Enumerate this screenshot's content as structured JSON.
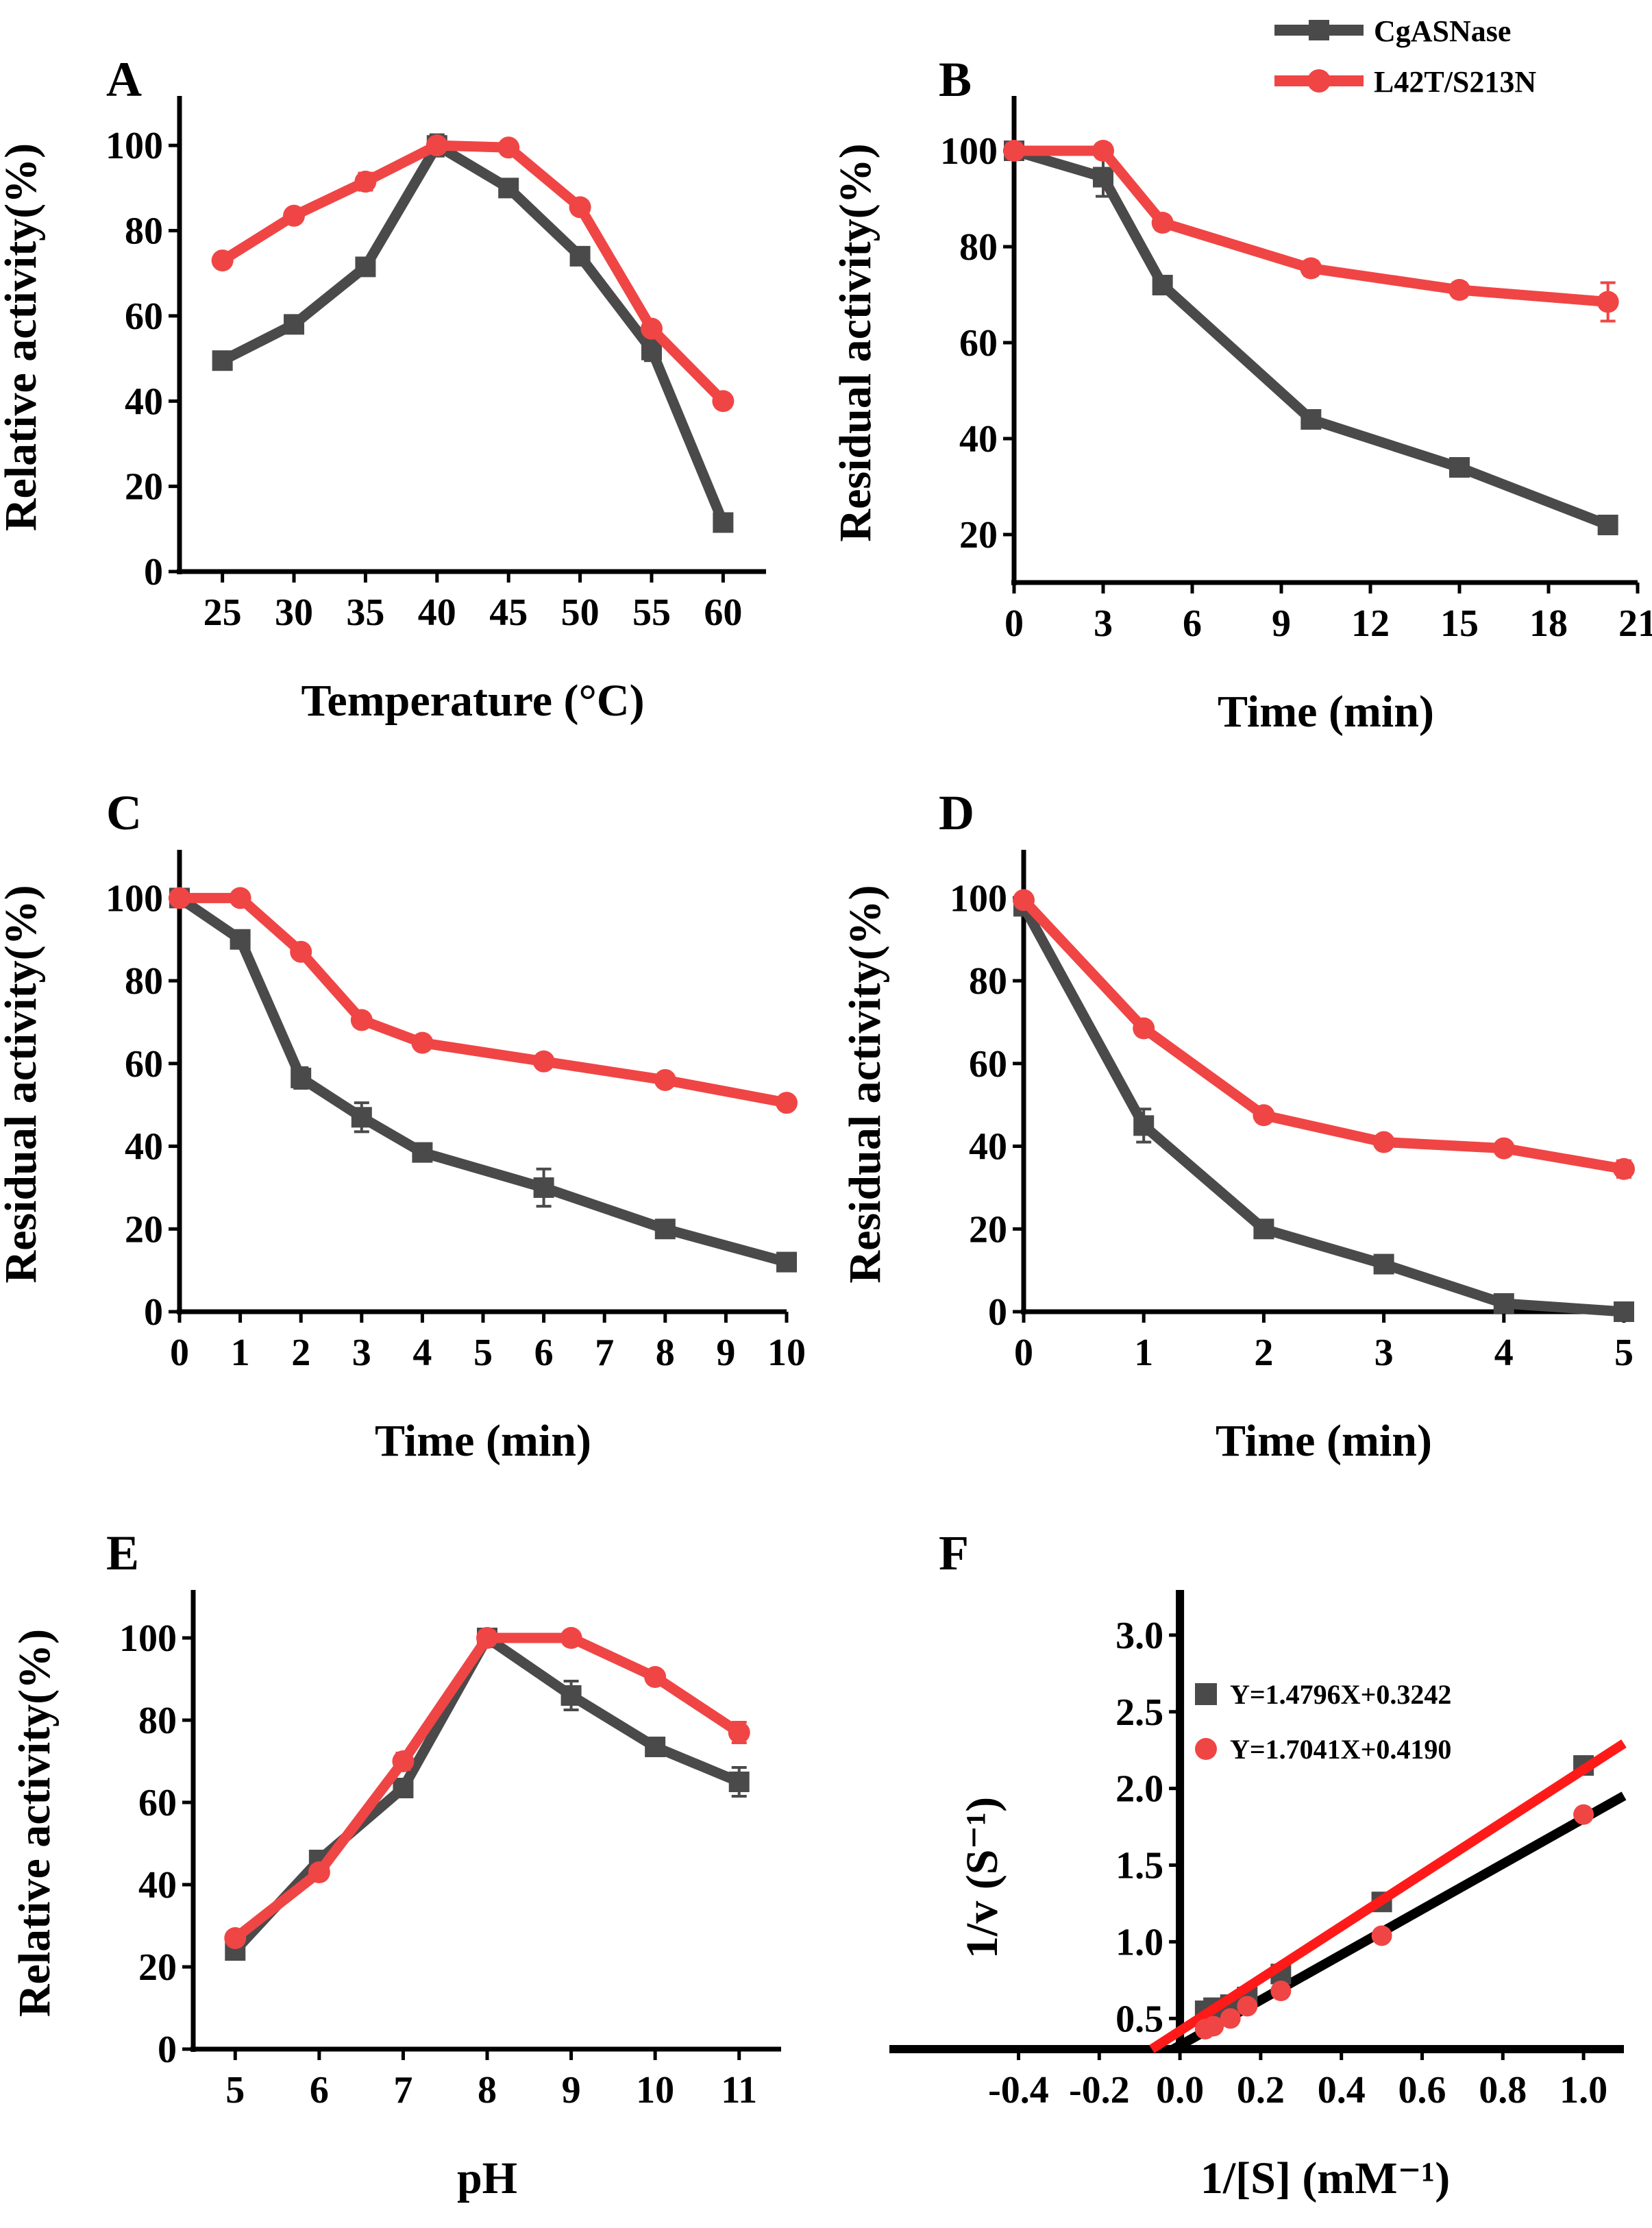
{
  "legend": {
    "entries": [
      {
        "name": "CgASNase",
        "color": "#4a4a4a"
      },
      {
        "name": "L42T/S213N",
        "color": "#f04545"
      }
    ]
  },
  "chart_data": [
    {
      "label": "A",
      "type": "line",
      "xlabel": "Temperature (°C)",
      "ylabel": "Relative activity(%)",
      "xlim": [
        22,
        63
      ],
      "ylim": [
        0,
        110
      ],
      "xticks": [
        25,
        30,
        35,
        40,
        45,
        50,
        55,
        60
      ],
      "xtick_labels": [
        "25",
        "30",
        "35",
        "40",
        "45",
        "50",
        "55",
        "60"
      ],
      "yticks": [
        0,
        20,
        40,
        60,
        80,
        100
      ],
      "ytick_labels": [
        "0",
        "20",
        "40",
        "60",
        "80",
        "100"
      ],
      "series": [
        {
          "name": "CgASNase",
          "x": [
            25,
            30,
            35,
            40,
            45,
            50,
            55,
            60
          ],
          "values": [
            49.5,
            58,
            71.5,
            100,
            90,
            74,
            52,
            11.5
          ],
          "errors": [
            1.5,
            1.5,
            1.5,
            2.5,
            1.5,
            1.5,
            2.5,
            1.5
          ]
        },
        {
          "name": "L42T/S213N",
          "x": [
            25,
            30,
            35,
            40,
            45,
            50,
            55,
            60
          ],
          "values": [
            73,
            83.5,
            91.5,
            100,
            99.5,
            85.5,
            57,
            40
          ],
          "errors": [
            1.5,
            1.5,
            2,
            1.5,
            1.5,
            1.5,
            1.5,
            1.5
          ]
        }
      ]
    },
    {
      "label": "B",
      "type": "line",
      "xlabel": "Time (min)",
      "ylabel": "Residual activity(%)",
      "xlim": [
        0,
        21
      ],
      "ylim": [
        10,
        110
      ],
      "xticks": [
        0,
        3,
        6,
        9,
        12,
        15,
        18,
        21
      ],
      "xtick_labels": [
        "0",
        "3",
        "6",
        "9",
        "12",
        "15",
        "18",
        "21"
      ],
      "yticks": [
        20,
        40,
        60,
        80,
        100
      ],
      "ytick_labels": [
        "20",
        "40",
        "60",
        "80",
        "100"
      ],
      "series": [
        {
          "name": "CgASNase",
          "x": [
            0,
            3,
            5,
            10,
            15,
            20
          ],
          "values": [
            100,
            94.5,
            72,
            44,
            34,
            22
          ],
          "errors": [
            1.5,
            4,
            1.5,
            1.5,
            1.5,
            1.5
          ]
        },
        {
          "name": "L42T/S213N",
          "x": [
            0,
            3,
            5,
            10,
            15,
            20
          ],
          "values": [
            100,
            100,
            85,
            75.5,
            71,
            68.5
          ],
          "errors": [
            1.5,
            1.5,
            1.5,
            1.5,
            1.5,
            4
          ]
        }
      ]
    },
    {
      "label": "C",
      "type": "line",
      "xlabel": "Time (min)",
      "ylabel": "Residual activity(%)",
      "xlim": [
        0,
        10
      ],
      "ylim": [
        0,
        110
      ],
      "xticks": [
        0,
        1,
        2,
        3,
        4,
        5,
        6,
        7,
        8,
        9,
        10
      ],
      "xtick_labels": [
        "0",
        "1",
        "2",
        "3",
        "4",
        "5",
        "6",
        "7",
        "8",
        "9",
        "10"
      ],
      "yticks": [
        0,
        20,
        40,
        60,
        80,
        100
      ],
      "ytick_labels": [
        "0",
        "20",
        "40",
        "60",
        "80",
        "100"
      ],
      "series": [
        {
          "name": "CgASNase",
          "x": [
            0,
            1,
            2,
            3,
            4,
            6,
            8,
            10
          ],
          "values": [
            100,
            90,
            56.5,
            47,
            38.5,
            30,
            20,
            12
          ],
          "errors": [
            1.5,
            1.5,
            2.5,
            3.5,
            1.5,
            4.5,
            1.5,
            1.5
          ]
        },
        {
          "name": "L42T/S213N",
          "x": [
            0,
            1,
            2,
            3,
            4,
            6,
            8,
            10
          ],
          "values": [
            100,
            100,
            87,
            70.5,
            65,
            60.5,
            56,
            50.5
          ],
          "errors": [
            1.5,
            1.5,
            1.5,
            1.5,
            1.5,
            1.5,
            1.5,
            1.5
          ]
        }
      ]
    },
    {
      "label": "D",
      "type": "line",
      "xlabel": "Time (min)",
      "ylabel": "Residual activity(%)",
      "xlim": [
        0,
        5
      ],
      "ylim": [
        0,
        110
      ],
      "xticks": [
        0,
        1,
        2,
        3,
        4,
        5
      ],
      "xtick_labels": [
        "0",
        "1",
        "2",
        "3",
        "4",
        "5"
      ],
      "yticks": [
        0,
        20,
        40,
        60,
        80,
        100
      ],
      "ytick_labels": [
        "0",
        "20",
        "40",
        "60",
        "80",
        "100"
      ],
      "series": [
        {
          "name": "CgASNase",
          "x": [
            0,
            1,
            2,
            3,
            4,
            5
          ],
          "values": [
            98,
            45,
            20,
            11.5,
            2,
            0
          ],
          "errors": [
            1.5,
            4,
            1.5,
            1.5,
            1.5,
            1
          ]
        },
        {
          "name": "L42T/S213N",
          "x": [
            0,
            1,
            2,
            3,
            4,
            5
          ],
          "values": [
            99.5,
            68.5,
            47.5,
            41,
            39.5,
            34.5
          ],
          "errors": [
            1.5,
            1.5,
            1.5,
            1.5,
            1.5,
            2
          ]
        }
      ]
    },
    {
      "label": "E",
      "type": "line",
      "xlabel": "pH",
      "ylabel": "Relative activity(%)",
      "xlim": [
        4.5,
        11.5
      ],
      "ylim": [
        0,
        110
      ],
      "xticks": [
        5,
        6,
        7,
        8,
        9,
        10,
        11
      ],
      "xtick_labels": [
        "5",
        "6",
        "7",
        "8",
        "9",
        "10",
        "11"
      ],
      "yticks": [
        0,
        20,
        40,
        60,
        80,
        100
      ],
      "ytick_labels": [
        "0",
        "20",
        "40",
        "60",
        "80",
        "100"
      ],
      "series": [
        {
          "name": "CgASNase",
          "x": [
            5,
            6,
            7,
            8,
            9,
            10,
            11
          ],
          "values": [
            24,
            46,
            63.5,
            100,
            86,
            73.5,
            65
          ],
          "errors": [
            1.5,
            1.5,
            1.5,
            1.5,
            3.5,
            1.5,
            3.5
          ]
        },
        {
          "name": "L42T/S213N",
          "x": [
            5,
            6,
            7,
            8,
            9,
            10,
            11
          ],
          "values": [
            27,
            43,
            70,
            100,
            100,
            90.5,
            77
          ],
          "errors": [
            1.5,
            1.5,
            2,
            1.5,
            1.5,
            1.5,
            2.5
          ]
        }
      ]
    },
    {
      "label": "F",
      "type": "scatter",
      "xlabel": "1/[S] (mM⁻¹)",
      "ylabel": "1/v (S⁻¹)",
      "xlim": [
        -0.72,
        1.1
      ],
      "ylim": [
        0.3,
        3.25
      ],
      "xticks": [
        -0.4,
        -0.2,
        0.0,
        0.2,
        0.4,
        0.6,
        0.8,
        1.0
      ],
      "xtick_labels": [
        "-0.4",
        "-0.2",
        "0.0",
        "0.2",
        "0.4",
        "0.6",
        "0.8",
        "1.0"
      ],
      "yticks": [
        0.5,
        1.0,
        1.5,
        2.0,
        2.5,
        3.0
      ],
      "ytick_labels": [
        "0.5",
        "1.0",
        "1.5",
        "2.0",
        "2.5",
        "3.0"
      ],
      "series": [
        {
          "name": "CgASNase",
          "equation": "Y=1.4796X+0.3242",
          "slope": 1.4796,
          "intercept": 0.3242,
          "x": [
            0.0625,
            0.0833,
            0.125,
            0.1667,
            0.25,
            0.5,
            1.0
          ],
          "values": [
            0.55,
            0.57,
            0.59,
            0.64,
            0.79,
            1.26,
            2.15
          ]
        },
        {
          "name": "L42T/S213N",
          "equation": "Y=1.7041X+0.4190",
          "slope": 1.7041,
          "intercept": 0.419,
          "x": [
            0.0625,
            0.0833,
            0.125,
            0.1667,
            0.25,
            0.5,
            1.0
          ],
          "values": [
            0.43,
            0.45,
            0.5,
            0.58,
            0.68,
            1.04,
            1.83
          ]
        }
      ]
    }
  ]
}
